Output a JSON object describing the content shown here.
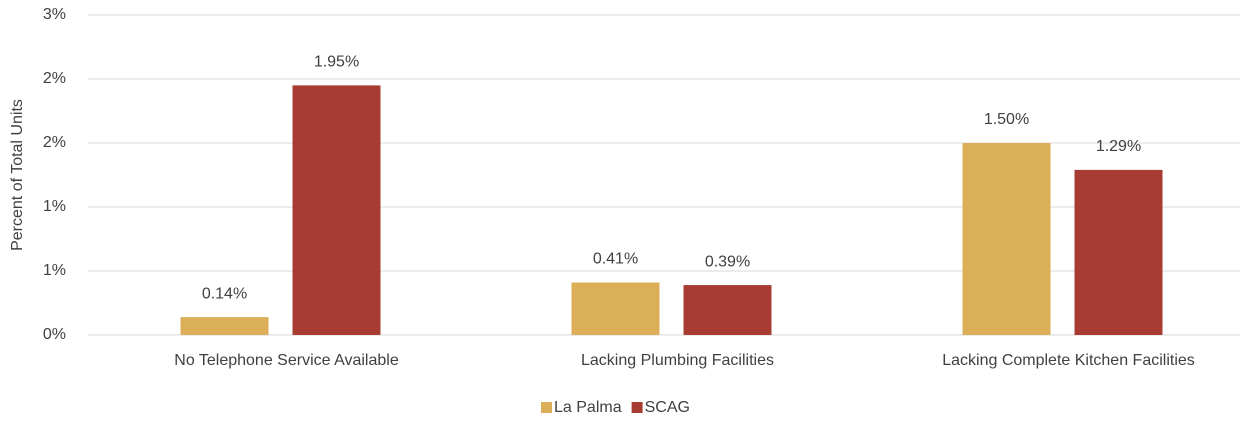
{
  "chart_data": {
    "type": "bar",
    "y_label": "Percent of Total Units",
    "categories": [
      "No Telephone Service Available",
      "Lacking Plumbing Facilities",
      "Lacking Complete Kitchen Facilities"
    ],
    "series": [
      {
        "name": "La Palma",
        "color": "#dbaf57",
        "values": [
          0.14,
          0.41,
          1.5
        ],
        "value_labels": [
          "0.14%",
          "0.41%",
          "1.50%"
        ]
      },
      {
        "name": "SCAG",
        "color": "#a83c32",
        "values": [
          1.95,
          0.39,
          1.29
        ],
        "value_labels": [
          "1.95%",
          "0.39%",
          "1.29%"
        ]
      }
    ],
    "ylim": [
      0,
      2.5
    ],
    "yticks": [
      {
        "value": 0,
        "label": "0%"
      },
      {
        "value": 0.5,
        "label": "1%"
      },
      {
        "value": 1,
        "label": "1%"
      },
      {
        "value": 1.5,
        "label": "2%"
      },
      {
        "value": 2,
        "label": "2%"
      },
      {
        "value": 2.5,
        "label": "3%"
      }
    ],
    "grid": true,
    "legend": "bottom"
  }
}
